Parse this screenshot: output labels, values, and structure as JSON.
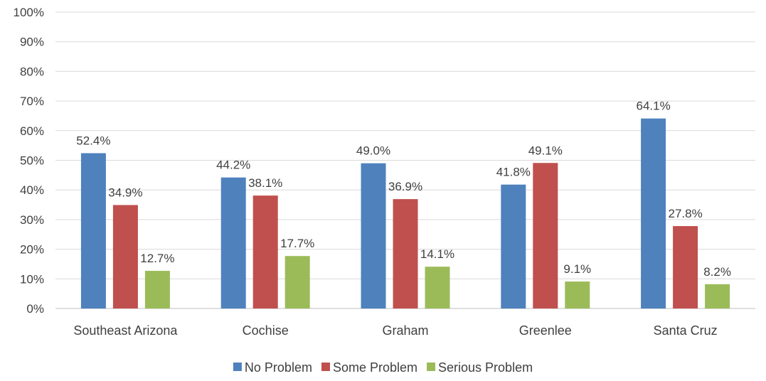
{
  "chart_data": {
    "type": "bar",
    "categories": [
      "Southeast Arizona",
      "Cochise",
      "Graham",
      "Greenlee",
      "Santa Cruz"
    ],
    "series": [
      {
        "name": "No Problem",
        "color": "#4F81BD",
        "values": [
          52.4,
          44.2,
          49.0,
          41.8,
          64.1
        ],
        "labels": [
          "52.4%",
          "44.2%",
          "49.0%",
          "41.8%",
          "64.1%"
        ]
      },
      {
        "name": "Some Problem",
        "color": "#C0504D",
        "values": [
          34.9,
          38.1,
          36.9,
          49.1,
          27.8
        ],
        "labels": [
          "34.9%",
          "38.1%",
          "36.9%",
          "49.1%",
          "27.8%"
        ]
      },
      {
        "name": "Serious Problem",
        "color": "#9BBB59",
        "values": [
          12.7,
          17.7,
          14.1,
          9.1,
          8.2
        ],
        "labels": [
          "12.7%",
          "17.7%",
          "14.1%",
          "9.1%",
          "8.2%"
        ]
      }
    ],
    "ylim": [
      0,
      100
    ],
    "yticks": [
      "0%",
      "10%",
      "20%",
      "30%",
      "40%",
      "50%",
      "60%",
      "70%",
      "80%",
      "90%",
      "100%"
    ],
    "grid": true,
    "legend": "bottom-center",
    "title": "",
    "xlabel": "",
    "ylabel": ""
  }
}
